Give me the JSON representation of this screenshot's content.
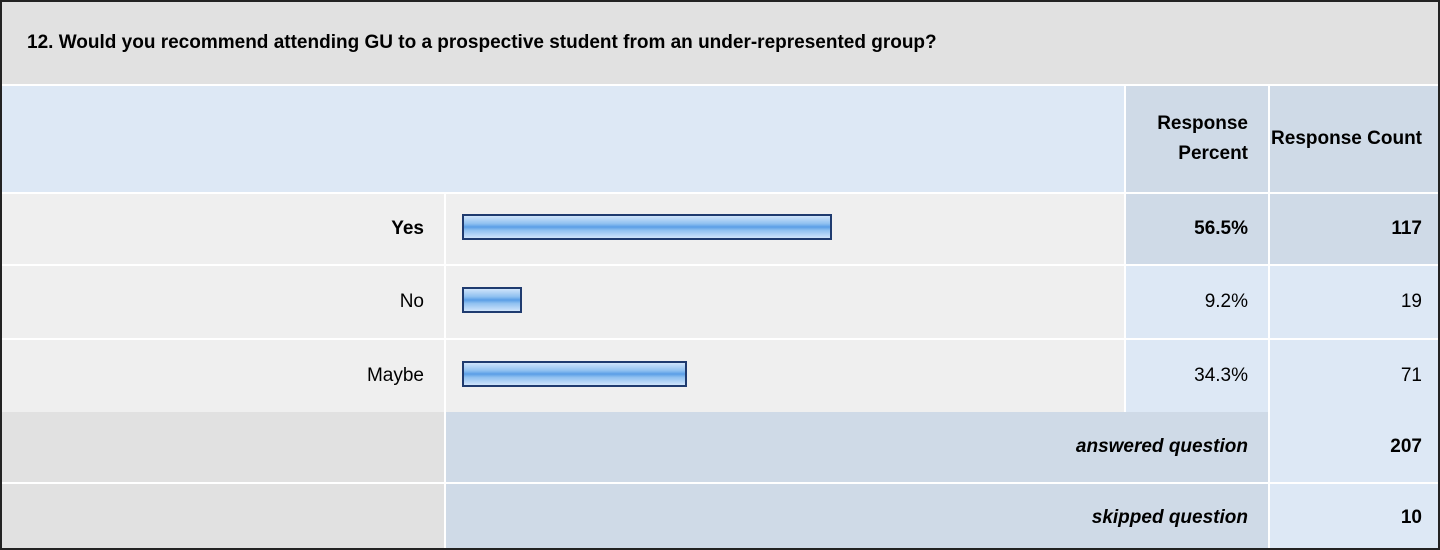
{
  "question": "12. Would you recommend attending GU to a prospective student from an under-represented group?",
  "headers": [
    "Response Percent",
    "Response Count"
  ],
  "rows": [
    {
      "label": "Yes",
      "percent": 56.5,
      "percent_label": "56.5%",
      "count": 117,
      "highlight": true
    },
    {
      "label": "No",
      "percent": 9.2,
      "percent_label": "9.2%",
      "count": 19,
      "highlight": false
    },
    {
      "label": "Maybe",
      "percent": 34.3,
      "percent_label": "34.3%",
      "count": 71,
      "highlight": false
    }
  ],
  "summary": [
    {
      "label": "answered question",
      "value": 207
    },
    {
      "label": "skipped question",
      "value": 10
    }
  ]
}
